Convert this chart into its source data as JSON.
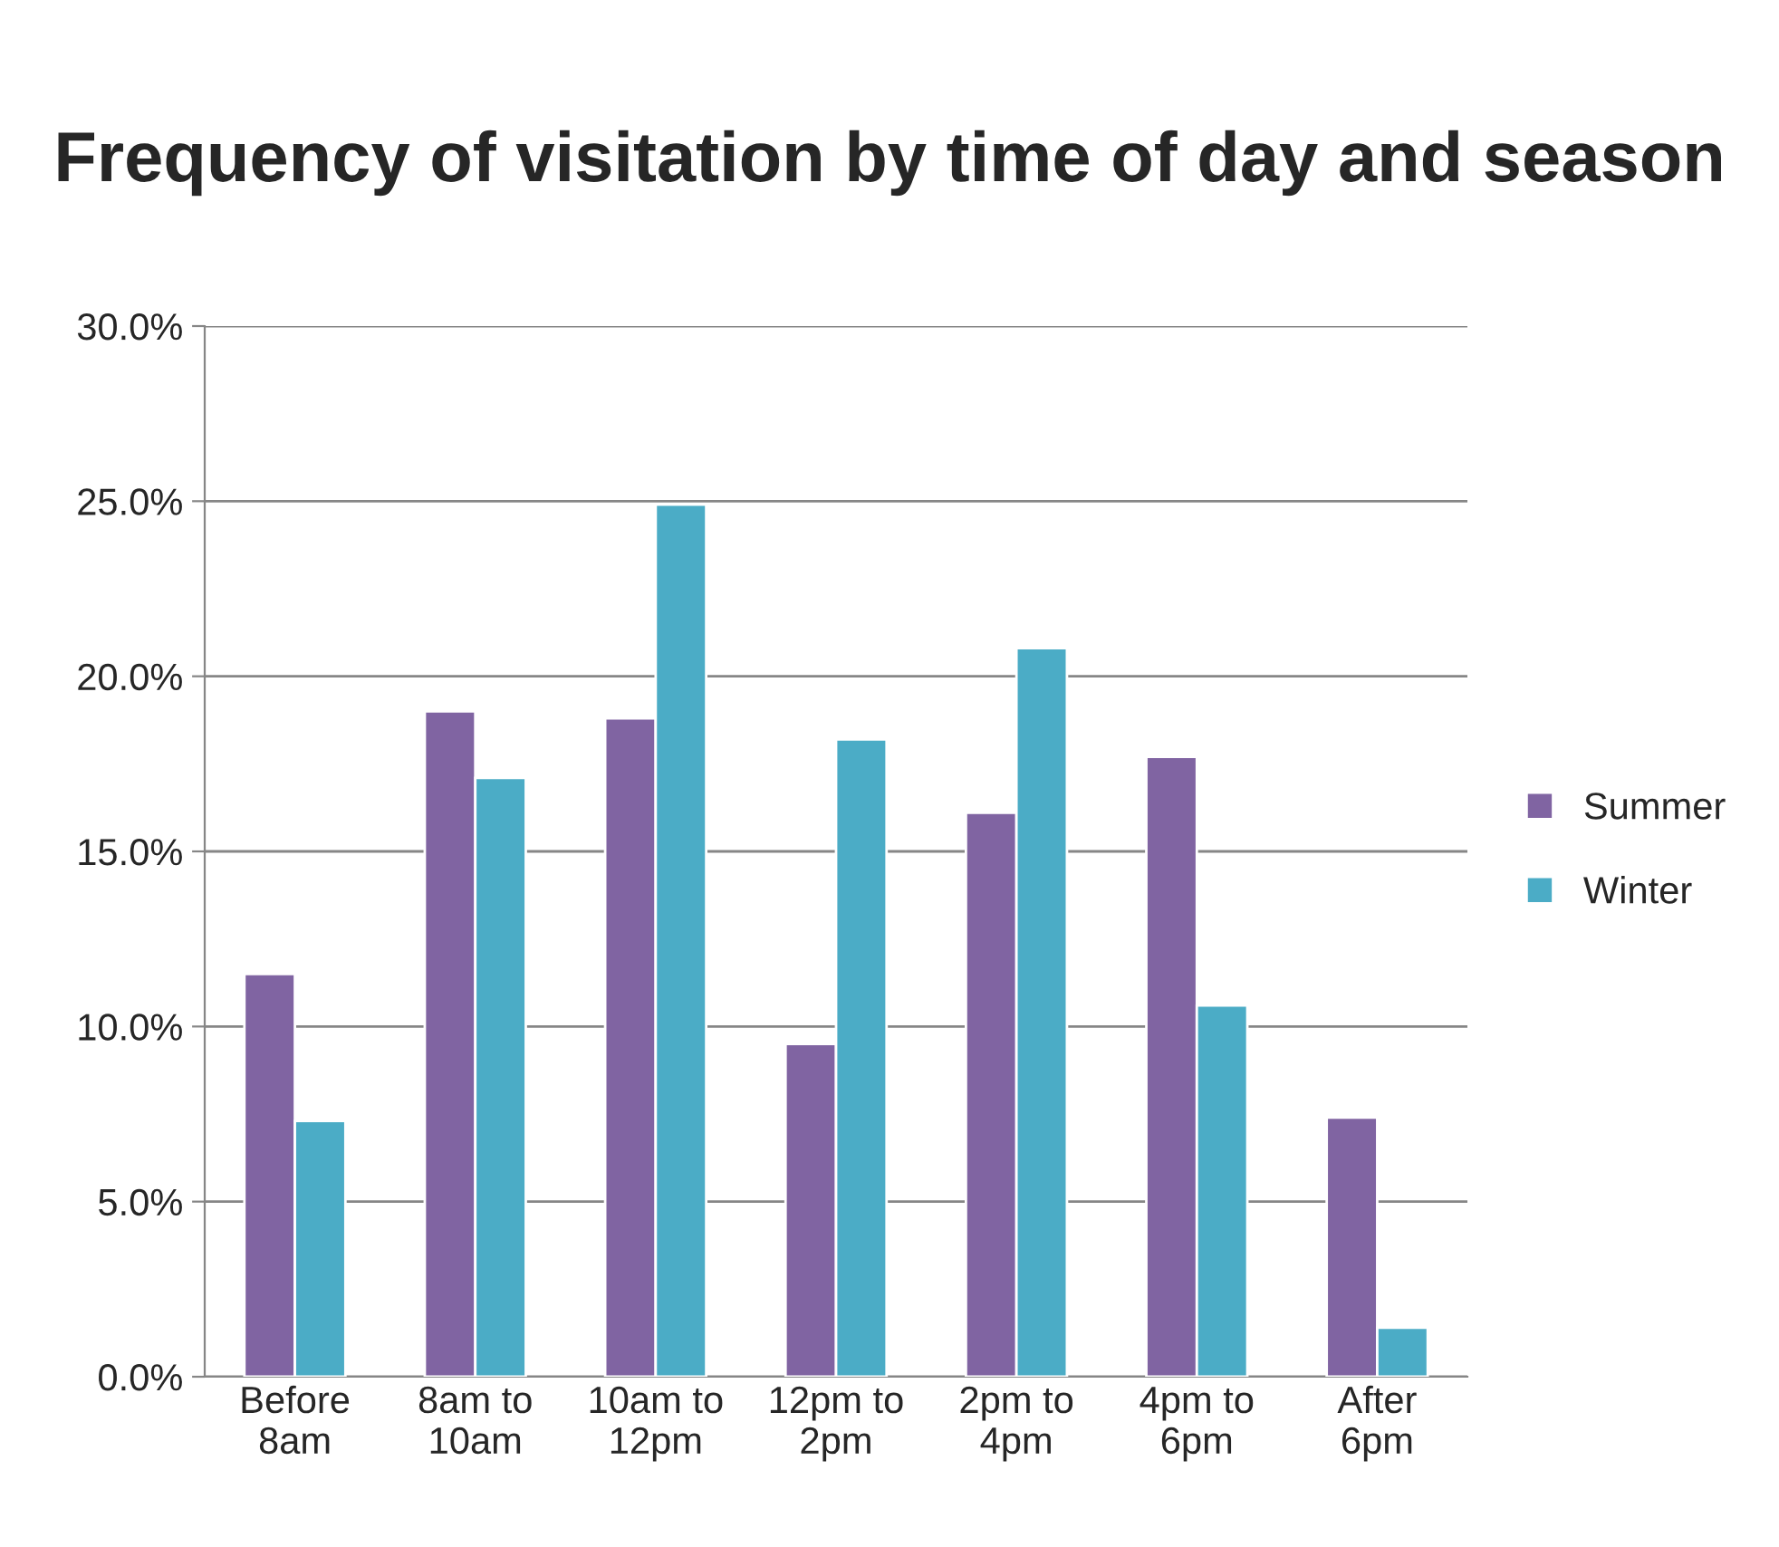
{
  "chart_data": {
    "type": "bar",
    "title": "Frequency of visitation by time of day and season",
    "categories": [
      "Before\n8am",
      "8am to\n10am",
      "10am to\n12pm",
      "12pm to\n2pm",
      "2pm to\n4pm",
      "4pm to\n6pm",
      "After\n6pm"
    ],
    "series": [
      {
        "name": "Summer",
        "color": "#8064a2",
        "values": [
          11.5,
          19.0,
          18.8,
          9.5,
          16.1,
          17.7,
          7.4
        ]
      },
      {
        "name": "Winter",
        "color": "#4bacc6",
        "values": [
          7.3,
          17.1,
          24.9,
          18.2,
          20.8,
          10.6,
          1.4
        ]
      }
    ],
    "ylim": [
      0,
      30
    ],
    "yticks": [
      {
        "value": 0,
        "label": "0.0%"
      },
      {
        "value": 5,
        "label": "5.0%"
      },
      {
        "value": 10,
        "label": "10.0%"
      },
      {
        "value": 15,
        "label": "15.0%"
      },
      {
        "value": 20,
        "label": "20.0%"
      },
      {
        "value": 25,
        "label": "25.0%"
      },
      {
        "value": 30,
        "label": "30.0%"
      }
    ],
    "grid": "y",
    "legend": "right"
  }
}
